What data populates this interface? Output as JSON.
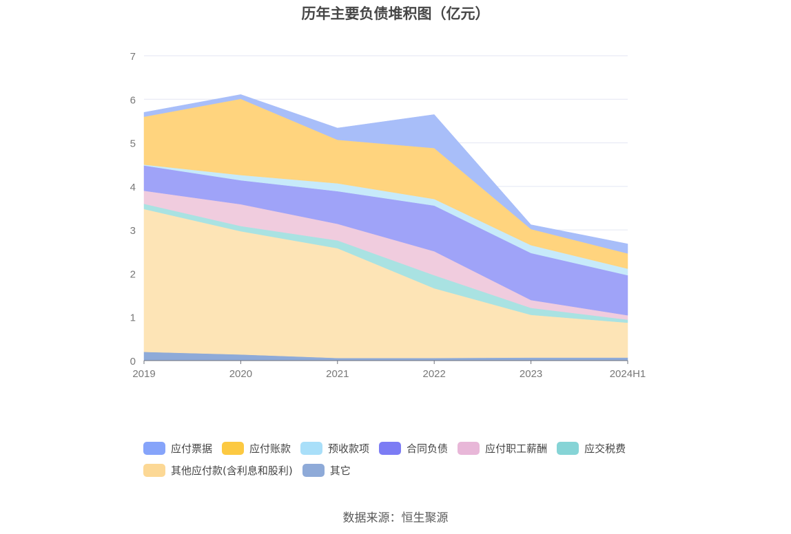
{
  "chart_data": {
    "type": "area",
    "stacked": true,
    "title": "历年主要负债堆积图（亿元）",
    "x": [
      "2019",
      "2020",
      "2021",
      "2022",
      "2023",
      "2024H1"
    ],
    "ylim": [
      0,
      7
    ],
    "yticks": [
      "0",
      "1",
      "2",
      "3",
      "4",
      "5",
      "6",
      "7"
    ],
    "grid": true,
    "legend_position": "bottom",
    "series": [
      {
        "name": "其它",
        "color": "#8eaad8",
        "values": [
          0.2,
          0.14,
          0.06,
          0.06,
          0.07,
          0.07
        ]
      },
      {
        "name": "其他应付款(含利息和股利)",
        "color": "#fde4b6",
        "values": [
          3.28,
          2.83,
          2.52,
          1.6,
          0.98,
          0.8
        ]
      },
      {
        "name": "应交税费",
        "color": "#a9e2e2",
        "values": [
          0.12,
          0.12,
          0.18,
          0.3,
          0.16,
          0.07
        ]
      },
      {
        "name": "应付职工薪酬",
        "color": "#f0ccde",
        "values": [
          0.3,
          0.5,
          0.38,
          0.55,
          0.18,
          0.1
        ]
      },
      {
        "name": "合同负债",
        "color": "#9fa3f8",
        "values": [
          0.58,
          0.55,
          0.75,
          1.05,
          1.08,
          0.92
        ]
      },
      {
        "name": "预收款项",
        "color": "#c7eafa",
        "values": [
          0.02,
          0.12,
          0.18,
          0.15,
          0.18,
          0.15
        ]
      },
      {
        "name": "应付账款",
        "color": "#ffd47e",
        "values": [
          1.1,
          1.75,
          1.0,
          1.17,
          0.37,
          0.35
        ]
      },
      {
        "name": "应付票据",
        "color": "#a8bef9",
        "values": [
          0.1,
          0.1,
          0.27,
          0.77,
          0.1,
          0.22
        ]
      }
    ]
  },
  "legend": [
    {
      "label": "应付票据",
      "color": "#86a4fa"
    },
    {
      "label": "应付账款",
      "color": "#fcc942"
    },
    {
      "label": "预收款项",
      "color": "#a9dff9"
    },
    {
      "label": "合同负债",
      "color": "#7c7cf4"
    },
    {
      "label": "应付职工薪酬",
      "color": "#e8b7d8"
    },
    {
      "label": "应交税费",
      "color": "#86d4d6"
    },
    {
      "label": "其他应付款(含利息和股利)",
      "color": "#fcd895"
    },
    {
      "label": "其它",
      "color": "#8eaad8"
    }
  ],
  "source": "数据来源：恒生聚源"
}
